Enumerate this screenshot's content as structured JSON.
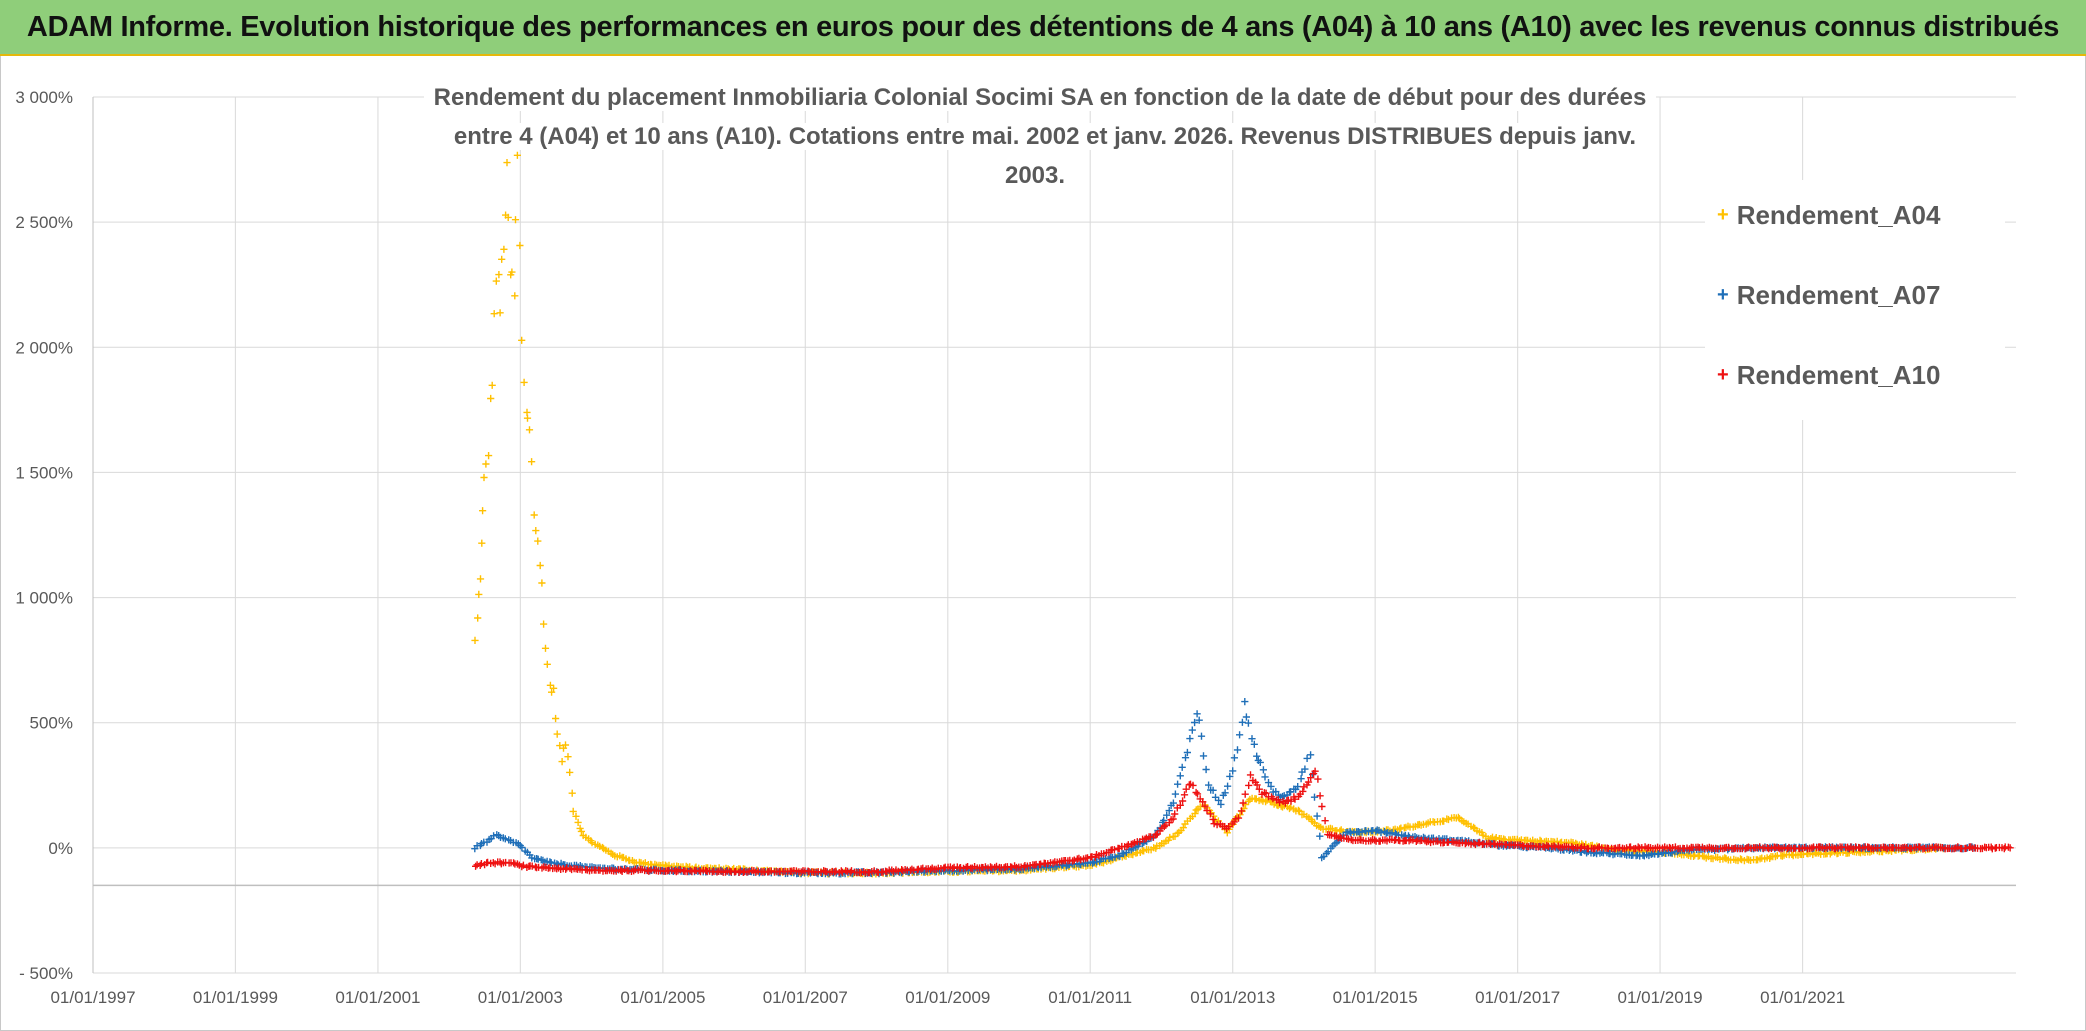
{
  "banner": {
    "title": "ADAM Informe. Evolution historique des performances en euros pour des détentions de 4 ans (A04) à 10 ans (A10) avec les revenus connus distribués"
  },
  "colors": {
    "A04": "#ffc000",
    "A07": "#1f6fb8",
    "A10": "#ee1111",
    "grid": "#d9d9d9",
    "axis": "#bfbfbf",
    "banner": "#8fce7a"
  },
  "chart_data": {
    "type": "scatter",
    "title_line1": "Rendement du placement Inmobiliaria Colonial Socimi SA en fonction de la date de début pour des durées",
    "title_line2": "entre 4 (A04) et 10 ans (A10). Cotations entre mai. 2002 et janv. 2026. Revenus DISTRIBUES depuis janv. 2003.",
    "xlim": [
      "1997-01-01",
      "2023-12-31"
    ],
    "ylim": [
      -500,
      3000
    ],
    "grid": true,
    "legend_position": "top-right",
    "x_ticks": [
      "01/01/1997",
      "01/01/1999",
      "01/01/2001",
      "01/01/2003",
      "01/01/2005",
      "01/01/2007",
      "01/01/2009",
      "01/01/2011",
      "01/01/2013",
      "01/01/2015",
      "01/01/2017",
      "01/01/2019",
      "01/01/2021"
    ],
    "y_ticks": [
      "- 500%",
      "0%",
      "500%",
      "1 000%",
      "1 500%",
      "2 000%",
      "2 500%",
      "3 000%"
    ],
    "series": [
      {
        "name": "Rendement_A04",
        "marker": "+",
        "points": [
          [
            "2002-05-15",
            820
          ],
          [
            "2002-06-01",
            1000
          ],
          [
            "2002-06-15",
            1200
          ],
          [
            "2002-07-01",
            1450
          ],
          [
            "2002-07-20",
            1600
          ],
          [
            "2002-08-10",
            1900
          ],
          [
            "2002-09-01",
            2300
          ],
          [
            "2002-09-20",
            2150
          ],
          [
            "2002-10-10",
            2450
          ],
          [
            "2002-10-25",
            2650
          ],
          [
            "2002-11-10",
            2300
          ],
          [
            "2002-12-01",
            2200
          ],
          [
            "2002-12-20",
            2750
          ],
          [
            "2003-01-10",
            2000
          ],
          [
            "2003-02-01",
            1750
          ],
          [
            "2003-02-20",
            1700
          ],
          [
            "2003-03-15",
            1350
          ],
          [
            "2003-04-01",
            1200
          ],
          [
            "2003-04-20",
            1050
          ],
          [
            "2003-05-10",
            800
          ],
          [
            "2003-06-01",
            650
          ],
          [
            "2003-06-20",
            620
          ],
          [
            "2003-07-10",
            450
          ],
          [
            "2003-08-01",
            350
          ],
          [
            "2003-08-20",
            420
          ],
          [
            "2003-09-10",
            300
          ],
          [
            "2003-10-01",
            150
          ],
          [
            "2003-11-01",
            80
          ],
          [
            "2003-12-01",
            40
          ],
          [
            "2004-02-01",
            10
          ],
          [
            "2004-05-01",
            -30
          ],
          [
            "2004-09-01",
            -60
          ],
          [
            "2005-01-01",
            -70
          ],
          [
            "2005-06-01",
            -80
          ],
          [
            "2006-01-01",
            -85
          ],
          [
            "2007-01-01",
            -100
          ],
          [
            "2008-01-01",
            -100
          ],
          [
            "2009-01-01",
            -95
          ],
          [
            "2010-01-01",
            -90
          ],
          [
            "2011-01-01",
            -70
          ],
          [
            "2011-06-01",
            -40
          ],
          [
            "2011-12-01",
            0
          ],
          [
            "2012-04-01",
            60
          ],
          [
            "2012-08-01",
            180
          ],
          [
            "2012-12-01",
            60
          ],
          [
            "2013-04-01",
            200
          ],
          [
            "2013-08-01",
            180
          ],
          [
            "2013-12-01",
            150
          ],
          [
            "2014-04-01",
            80
          ],
          [
            "2014-10-01",
            60
          ],
          [
            "2015-04-01",
            70
          ],
          [
            "2015-10-01",
            100
          ],
          [
            "2016-03-01",
            120
          ],
          [
            "2016-08-01",
            40
          ],
          [
            "2017-02-01",
            30
          ],
          [
            "2017-10-01",
            20
          ],
          [
            "2018-06-01",
            -10
          ],
          [
            "2019-02-01",
            -20
          ],
          [
            "2019-10-01",
            -40
          ],
          [
            "2020-04-01",
            -50
          ],
          [
            "2020-10-01",
            -30
          ],
          [
            "2021-06-01",
            -20
          ],
          [
            "2022-06-01",
            -10
          ],
          [
            "2023-01-01",
            0
          ]
        ]
      },
      {
        "name": "Rendement_A07",
        "marker": "+",
        "points": [
          [
            "2002-05-15",
            0
          ],
          [
            "2002-07-01",
            20
          ],
          [
            "2002-09-01",
            50
          ],
          [
            "2002-11-01",
            30
          ],
          [
            "2003-01-01",
            10
          ],
          [
            "2003-03-01",
            -40
          ],
          [
            "2003-06-01",
            -60
          ],
          [
            "2004-01-01",
            -80
          ],
          [
            "2005-01-01",
            -90
          ],
          [
            "2006-01-01",
            -95
          ],
          [
            "2007-01-01",
            -100
          ],
          [
            "2008-01-01",
            -100
          ],
          [
            "2009-01-01",
            -90
          ],
          [
            "2010-01-01",
            -85
          ],
          [
            "2011-01-01",
            -60
          ],
          [
            "2011-06-01",
            -30
          ],
          [
            "2011-12-01",
            50
          ],
          [
            "2012-03-01",
            180
          ],
          [
            "2012-05-01",
            350
          ],
          [
            "2012-07-01",
            560
          ],
          [
            "2012-09-01",
            250
          ],
          [
            "2012-11-01",
            180
          ],
          [
            "2013-01-01",
            300
          ],
          [
            "2013-03-01",
            560
          ],
          [
            "2013-05-01",
            380
          ],
          [
            "2013-07-01",
            250
          ],
          [
            "2013-09-01",
            200
          ],
          [
            "2013-12-01",
            250
          ],
          [
            "2014-02-01",
            380
          ],
          [
            "2014-04-01",
            -40
          ],
          [
            "2014-08-01",
            60
          ],
          [
            "2015-01-01",
            70
          ],
          [
            "2015-08-01",
            40
          ],
          [
            "2016-03-01",
            30
          ],
          [
            "2016-10-01",
            10
          ],
          [
            "2017-06-01",
            0
          ],
          [
            "2018-02-01",
            -20
          ],
          [
            "2018-10-01",
            -30
          ],
          [
            "2019-06-01",
            -10
          ],
          [
            "2020-06-01",
            0
          ],
          [
            "2021-06-01",
            0
          ],
          [
            "2022-06-01",
            0
          ],
          [
            "2023-06-01",
            0
          ]
        ]
      },
      {
        "name": "Rendement_A10",
        "marker": "+",
        "points": [
          [
            "2002-05-15",
            -70
          ],
          [
            "2002-08-01",
            -60
          ],
          [
            "2002-11-01",
            -60
          ],
          [
            "2003-02-01",
            -75
          ],
          [
            "2003-06-01",
            -80
          ],
          [
            "2004-01-01",
            -90
          ],
          [
            "2005-01-01",
            -90
          ],
          [
            "2006-01-01",
            -95
          ],
          [
            "2007-01-01",
            -95
          ],
          [
            "2008-01-01",
            -95
          ],
          [
            "2009-01-01",
            -80
          ],
          [
            "2010-01-01",
            -75
          ],
          [
            "2011-01-01",
            -40
          ],
          [
            "2011-06-01",
            0
          ],
          [
            "2011-12-01",
            50
          ],
          [
            "2012-03-01",
            120
          ],
          [
            "2012-06-01",
            260
          ],
          [
            "2012-08-01",
            180
          ],
          [
            "2012-10-01",
            100
          ],
          [
            "2012-12-01",
            80
          ],
          [
            "2013-02-01",
            120
          ],
          [
            "2013-04-01",
            280
          ],
          [
            "2013-06-01",
            220
          ],
          [
            "2013-09-01",
            180
          ],
          [
            "2013-12-01",
            200
          ],
          [
            "2014-03-01",
            320
          ],
          [
            "2014-05-01",
            50
          ],
          [
            "2014-10-01",
            30
          ],
          [
            "2015-06-01",
            30
          ],
          [
            "2016-03-01",
            20
          ],
          [
            "2017-01-01",
            10
          ],
          [
            "2018-01-01",
            0
          ],
          [
            "2019-01-01",
            0
          ],
          [
            "2020-01-01",
            0
          ],
          [
            "2021-01-01",
            0
          ],
          [
            "2022-01-01",
            0
          ],
          [
            "2023-01-01",
            0
          ],
          [
            "2023-12-01",
            0
          ]
        ]
      }
    ]
  }
}
